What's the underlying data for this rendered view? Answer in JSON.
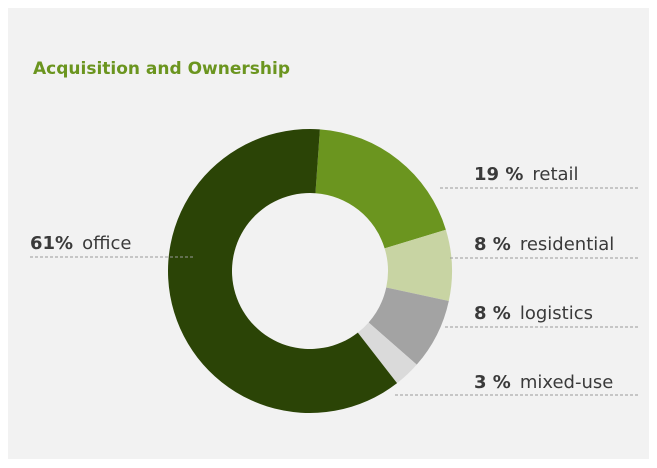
{
  "chart_data": {
    "type": "donut",
    "title": "Acquisition and Ownership",
    "categories": [
      "retail",
      "residential",
      "logistics",
      "mixed-use",
      "office"
    ],
    "values": [
      19,
      8,
      8,
      3,
      61
    ],
    "value_labels": [
      "19 %",
      "8 %",
      "8 %",
      "3 %",
      "61%"
    ],
    "colors": [
      "#6b951f",
      "#c8d4a3",
      "#a3a3a3",
      "#dadada",
      "#2b4406"
    ]
  }
}
